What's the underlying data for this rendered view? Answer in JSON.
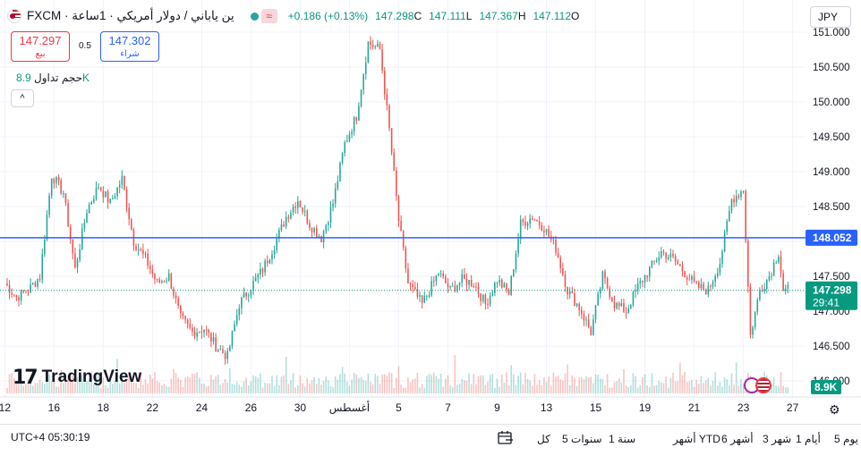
{
  "header": {
    "symbol": "ين ياباني / دولار أمريكي · 1ساعة · FXCM",
    "change": "+0.186 (+0.13%)",
    "close_label": "C",
    "close": "147.298",
    "low_label": "L",
    "low": "147.111",
    "high_label": "H",
    "high": "147.367",
    "open_label": "O",
    "open": "147.112",
    "wave_icon": "≈"
  },
  "quote": {
    "sell_price": "147.297",
    "sell_label": "بيع",
    "spread": "0.5",
    "buy_price": "147.302",
    "buy_label": "شراء"
  },
  "volume": {
    "label": "حجم تداول",
    "value": "8.9K",
    "collapse_icon": "^"
  },
  "currency_button": "JPY",
  "logo_text": "TradingView",
  "clock": "UTC+4 05:30:19",
  "ranges": [
    "يوم 5",
    "أيام 1",
    "شهر 3",
    "أشهر 6",
    "أشهر YTD",
    "1 سنة",
    "5 سنوات",
    "كل"
  ],
  "colors": {
    "up": "#26a69a",
    "down": "#ef5350",
    "hline": "#2962ff",
    "price_tag": "#089981"
  },
  "chart_data": {
    "type": "candlestick",
    "title": "",
    "y_ticks": [
      "151.000",
      "150.500",
      "150.000",
      "149.500",
      "149.000",
      "148.500",
      "148.000",
      "147.500",
      "147.000",
      "146.500",
      "146.000"
    ],
    "y_tick_values": [
      151.0,
      150.5,
      150.0,
      149.5,
      149.0,
      148.5,
      148.0,
      147.5,
      147.0,
      146.5,
      146.0
    ],
    "ylim": [
      145.82,
      151.18
    ],
    "x_ticks": [
      "12",
      "16",
      "18",
      "22",
      "24",
      "26",
      "30",
      "أغسطس",
      "5",
      "7",
      "9",
      "13",
      "15",
      "19",
      "21",
      "23",
      "27"
    ],
    "x_tick_index": [
      0,
      21,
      42,
      63,
      84,
      105,
      126,
      147,
      168,
      189,
      210,
      231,
      252,
      273,
      294,
      315,
      336
    ],
    "horizontal_line": {
      "value": 148.052,
      "label": "148.052"
    },
    "last_price": {
      "value": 147.298,
      "label": "147.298",
      "countdown": "29:41"
    },
    "volume_tag": "8.9K",
    "anchors": [
      [
        0,
        147.4
      ],
      [
        5,
        147.2
      ],
      [
        10,
        147.3
      ],
      [
        15,
        147.5
      ],
      [
        20,
        148.95
      ],
      [
        25,
        148.7
      ],
      [
        30,
        147.6
      ],
      [
        35,
        148.45
      ],
      [
        40,
        148.8
      ],
      [
        45,
        148.55
      ],
      [
        50,
        148.9
      ],
      [
        55,
        148.0
      ],
      [
        60,
        147.75
      ],
      [
        65,
        147.4
      ],
      [
        70,
        147.5
      ],
      [
        75,
        146.9
      ],
      [
        80,
        146.7
      ],
      [
        85,
        146.75
      ],
      [
        90,
        146.5
      ],
      [
        95,
        146.35
      ],
      [
        100,
        147.1
      ],
      [
        105,
        147.35
      ],
      [
        110,
        147.6
      ],
      [
        115,
        147.95
      ],
      [
        120,
        148.35
      ],
      [
        125,
        148.6
      ],
      [
        130,
        148.25
      ],
      [
        135,
        148.05
      ],
      [
        140,
        148.55
      ],
      [
        145,
        149.4
      ],
      [
        150,
        149.8
      ],
      [
        155,
        150.85
      ],
      [
        160,
        150.75
      ],
      [
        164,
        149.6
      ],
      [
        168,
        148.3
      ],
      [
        172,
        147.4
      ],
      [
        178,
        147.1
      ],
      [
        185,
        147.55
      ],
      [
        190,
        147.3
      ],
      [
        195,
        147.45
      ],
      [
        200,
        147.4
      ],
      [
        205,
        147.1
      ],
      [
        210,
        147.45
      ],
      [
        215,
        147.25
      ],
      [
        220,
        148.25
      ],
      [
        225,
        148.35
      ],
      [
        230,
        148.2
      ],
      [
        235,
        147.9
      ],
      [
        240,
        147.3
      ],
      [
        245,
        147.05
      ],
      [
        250,
        146.7
      ],
      [
        255,
        147.5
      ],
      [
        260,
        147.1
      ],
      [
        265,
        147.0
      ],
      [
        270,
        147.35
      ],
      [
        275,
        147.6
      ],
      [
        280,
        147.85
      ],
      [
        285,
        147.75
      ],
      [
        290,
        147.55
      ],
      [
        295,
        147.35
      ],
      [
        300,
        147.3
      ],
      [
        305,
        147.7
      ],
      [
        310,
        148.6
      ],
      [
        315,
        148.75
      ],
      [
        318,
        146.65
      ],
      [
        322,
        147.3
      ],
      [
        326,
        147.5
      ],
      [
        330,
        147.85
      ],
      [
        332,
        147.3
      ]
    ]
  }
}
